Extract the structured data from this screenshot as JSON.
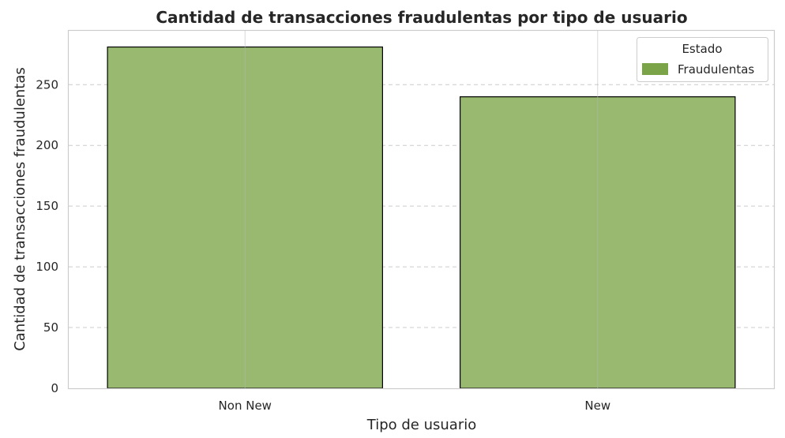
{
  "chart_data": {
    "type": "bar",
    "title": "Cantidad de transacciones fraudulentas por tipo de usuario",
    "xlabel": "Tipo de usuario",
    "ylabel": "Cantidad de transacciones fraudulentas",
    "categories": [
      "Non New",
      "New"
    ],
    "series": [
      {
        "name": "Fraudulentas",
        "values": [
          281,
          240
        ]
      }
    ],
    "ylim": [
      0,
      295
    ],
    "yticks": [
      "0",
      "50",
      "100",
      "150",
      "200",
      "250"
    ],
    "legend": {
      "title": "Estado",
      "position": "top-right"
    },
    "grid": true,
    "colors": {
      "bar": "#98b96f",
      "legend_patch": "#7ba449",
      "bar_edge": "#000000"
    }
  }
}
